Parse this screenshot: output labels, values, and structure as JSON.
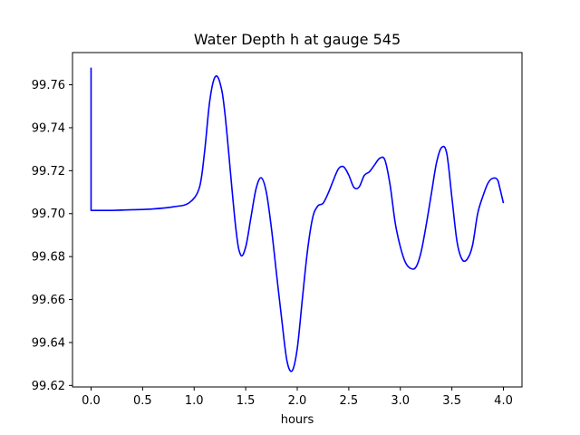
{
  "chart_data": {
    "type": "line",
    "title": "Water Depth h at gauge 545",
    "xlabel": "hours",
    "ylabel": "",
    "xlim": [
      -0.18,
      4.18
    ],
    "ylim": [
      99.6193,
      99.775
    ],
    "xticks": [
      0.0,
      0.5,
      1.0,
      1.5,
      2.0,
      2.5,
      3.0,
      3.5,
      4.0
    ],
    "xtick_labels": [
      "0.0",
      "0.5",
      "1.0",
      "1.5",
      "2.0",
      "2.5",
      "3.0",
      "3.5",
      "4.0"
    ],
    "yticks": [
      99.62,
      99.64,
      99.66,
      99.68,
      99.7,
      99.72,
      99.74,
      99.76
    ],
    "ytick_labels": [
      "99.62",
      "99.64",
      "99.66",
      "99.68",
      "99.70",
      "99.72",
      "99.74",
      "99.76"
    ],
    "grid": false,
    "series": [
      {
        "color": "#0000ff",
        "x": [
          0.0,
          0.0,
          0.0,
          0.2,
          0.4,
          0.6,
          0.8,
          0.95,
          1.05,
          1.1,
          1.15,
          1.2,
          1.25,
          1.3,
          1.4,
          1.45,
          1.5,
          1.55,
          1.6,
          1.65,
          1.7,
          1.75,
          1.8,
          1.85,
          1.9,
          1.95,
          2.0,
          2.05,
          2.1,
          2.15,
          2.2,
          2.25,
          2.3,
          2.35,
          2.4,
          2.45,
          2.5,
          2.55,
          2.6,
          2.65,
          2.7,
          2.75,
          2.8,
          2.85,
          2.9,
          2.95,
          3.0,
          3.05,
          3.1,
          3.15,
          3.2,
          3.25,
          3.3,
          3.35,
          3.4,
          3.45,
          3.5,
          3.55,
          3.6,
          3.65,
          3.7,
          3.75,
          3.8,
          3.85,
          3.9,
          3.95,
          4.0
        ],
        "y": [
          99.768,
          99.7015,
          99.7015,
          99.7015,
          99.7018,
          99.7022,
          99.7032,
          99.705,
          99.712,
          99.7283,
          99.752,
          99.7634,
          99.761,
          99.746,
          99.695,
          99.6809,
          99.6845,
          99.698,
          99.7115,
          99.7167,
          99.71,
          99.693,
          99.6715,
          99.6505,
          99.6315,
          99.6268,
          99.6372,
          99.6605,
          99.683,
          99.6982,
          99.7036,
          99.7048,
          99.7095,
          99.7155,
          99.7209,
          99.7218,
          99.7179,
          99.7122,
          99.7124,
          99.7178,
          99.7195,
          99.7227,
          99.7258,
          99.725,
          99.7135,
          99.6958,
          99.6845,
          99.6772,
          99.6745,
          99.675,
          99.6819,
          99.6945,
          99.709,
          99.7235,
          99.7308,
          99.7281,
          99.7075,
          99.6869,
          99.6786,
          99.6789,
          99.6852,
          99.7,
          99.708,
          99.7142,
          99.7165,
          99.715,
          99.7049
        ]
      }
    ]
  }
}
